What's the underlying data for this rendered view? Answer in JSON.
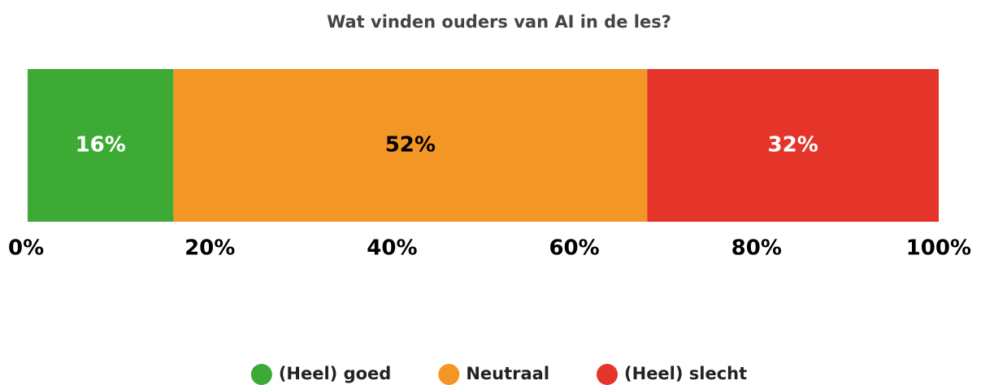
{
  "chart_data": {
    "type": "stacked-bar-horizontal",
    "title": "Wat vinden ouders van AI in de les?",
    "categories": [
      null
    ],
    "series": [
      {
        "name": "(Heel) goed",
        "color": "#3daa35",
        "label_color": "#ffffff",
        "values": [
          16
        ],
        "value_labels": [
          "16%"
        ]
      },
      {
        "name": "Neutraal",
        "color": "#f39625",
        "label_color": "#000000",
        "values": [
          52
        ],
        "value_labels": [
          "52%"
        ]
      },
      {
        "name": "(Heel) slecht",
        "color": "#e5352b",
        "label_color": "#ffffff",
        "values": [
          32
        ],
        "value_labels": [
          "32%"
        ]
      }
    ],
    "xlim": [
      0,
      100
    ],
    "xticks": [
      {
        "value": 0,
        "label": "0%"
      },
      {
        "value": 20,
        "label": "20%"
      },
      {
        "value": 40,
        "label": "40%"
      },
      {
        "value": 60,
        "label": "60%"
      },
      {
        "value": 80,
        "label": "80%"
      },
      {
        "value": 100,
        "label": "100%"
      }
    ],
    "legend": "bottom"
  }
}
